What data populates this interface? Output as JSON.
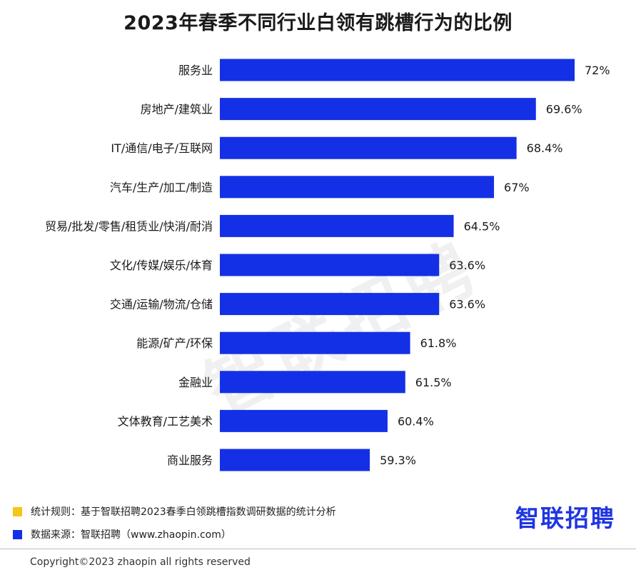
{
  "chart_data": {
    "type": "bar",
    "orientation": "horizontal",
    "title": "2023年春季不同行业白领有跳槽行为的比例",
    "categories": [
      "服务业",
      "房地产/建筑业",
      "IT/通信/电子/互联网",
      "汽车/生产/加工/制造",
      "贸易/批发/零售/租赁业/快消/耐消",
      "文化/传媒/娱乐/体育",
      "交通/运输/物流/仓储",
      "能源/矿产/环保",
      "金融业",
      "文体教育/工艺美术",
      "商业服务"
    ],
    "values": [
      72,
      69.6,
      68.4,
      67,
      64.5,
      63.6,
      63.6,
      61.8,
      61.5,
      60.4,
      59.3
    ],
    "value_labels": [
      "72%",
      "69.6%",
      "68.4%",
      "67%",
      "64.5%",
      "63.6%",
      "63.6%",
      "61.8%",
      "61.5%",
      "60.4%",
      "59.3%"
    ],
    "xlabel": "",
    "ylabel": "",
    "xlim": [
      50,
      72
    ],
    "grid": false,
    "bar_color": "#1430e6"
  },
  "legend": {
    "rule_color": "#f5c518",
    "rule_text": "统计规则：基于智联招聘2023春季白领跳槽指数调研数据的统计分析",
    "source_color": "#1430e6",
    "source_text": "数据来源：智联招聘（www.zhaopin.com）"
  },
  "brand": {
    "logo": "智联招聘",
    "watermark": "智联招聘"
  },
  "footer": {
    "copyright": "Copyright©2023 zhaopin all rights reserved"
  }
}
